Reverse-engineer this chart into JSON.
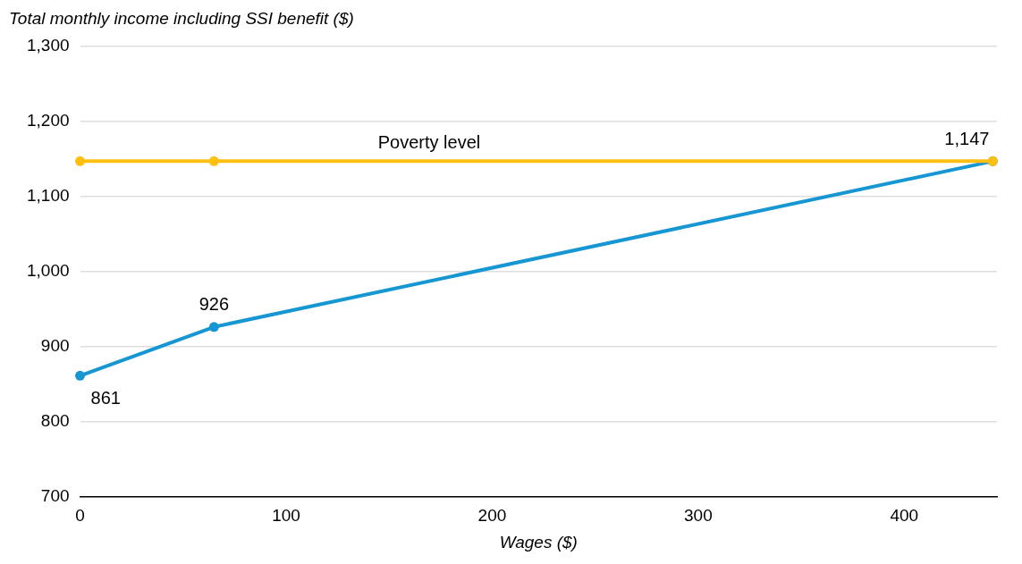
{
  "chart_data": {
    "type": "line",
    "xlabel": "Wages ($)",
    "ylabel": "Total monthly income including SSI benefit ($)",
    "x": [
      0,
      65,
      443
    ],
    "series": [
      {
        "color": "#1696d2",
        "values": [
          861,
          926,
          1147
        ],
        "value_labels": [
          "861",
          "926",
          "1,147"
        ]
      },
      {
        "name": "Poverty level",
        "color": "#fdbf11",
        "values": [
          1147,
          1147,
          1147
        ]
      }
    ],
    "xlim": [
      0,
      445
    ],
    "xticks": [
      0,
      100,
      200,
      300,
      400
    ],
    "ylim": [
      700,
      1300
    ],
    "yticks": [
      700,
      800,
      900,
      {
        "value": 1000,
        "label": "1,000"
      },
      {
        "value": 1100,
        "label": "1,100"
      },
      {
        "value": 1200,
        "label": "1,200"
      },
      {
        "value": 1300,
        "label": "1,300"
      }
    ],
    "grid": "y",
    "marker": "circle",
    "line_style": "solid"
  }
}
